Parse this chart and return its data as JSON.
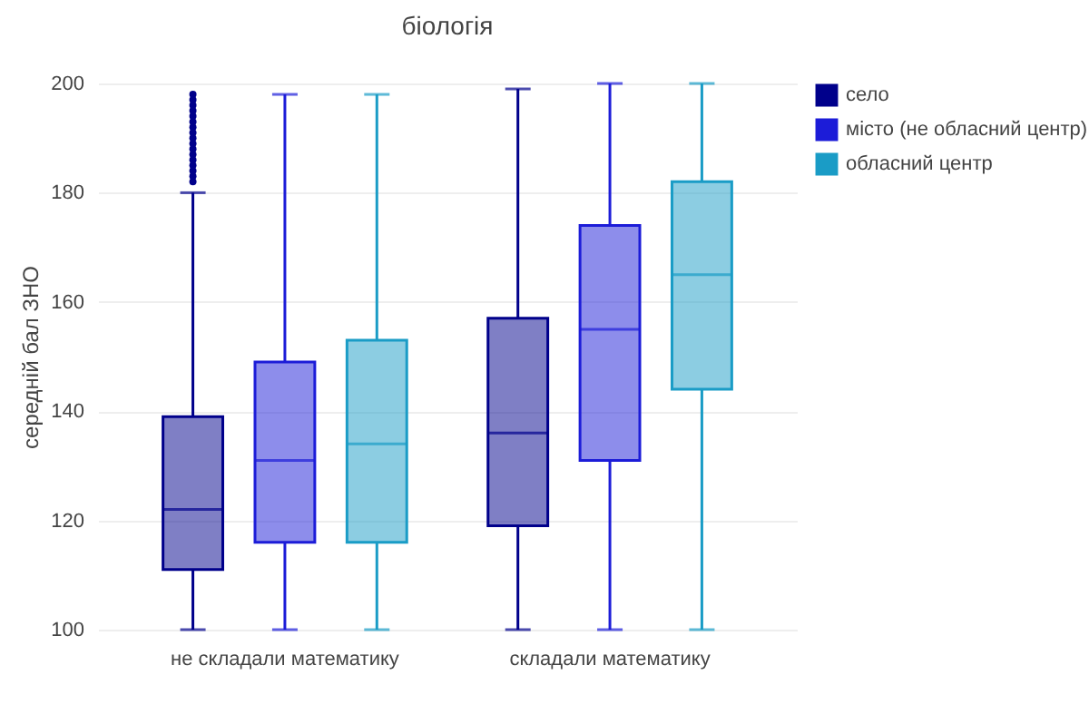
{
  "chart_data": {
    "type": "box",
    "title": "біологія",
    "ylabel": "середній бал ЗНО",
    "categories": [
      "не складали математику",
      "складали математику"
    ],
    "series": [
      {
        "name": "село",
        "color": "#00008b",
        "boxes": [
          {
            "low": 100,
            "q1": 111,
            "median": 122,
            "q3": 139,
            "high": 180,
            "outliers": [
              182,
              183,
              184,
              185,
              186,
              187,
              188,
              189,
              190,
              191,
              192,
              193,
              194,
              195,
              196,
              197,
              198
            ]
          },
          {
            "low": 100,
            "q1": 119,
            "median": 136,
            "q3": 157,
            "high": 199
          }
        ]
      },
      {
        "name": "місто (не обласний центр)",
        "color": "#1c1cd8",
        "boxes": [
          {
            "low": 100,
            "q1": 116,
            "median": 131,
            "q3": 149,
            "high": 198
          },
          {
            "low": 100,
            "q1": 131,
            "median": 155,
            "q3": 174,
            "high": 200
          }
        ]
      },
      {
        "name": "обласний центр",
        "color": "#1a9cc6",
        "boxes": [
          {
            "low": 100,
            "q1": 116,
            "median": 134,
            "q3": 153,
            "high": 198
          },
          {
            "low": 100,
            "q1": 144,
            "median": 165,
            "q3": 182,
            "high": 200
          }
        ]
      }
    ],
    "ylim": [
      100,
      200
    ],
    "yticks": [
      100,
      120,
      140,
      160,
      180,
      200
    ],
    "grid": "y",
    "legend": "top right"
  }
}
